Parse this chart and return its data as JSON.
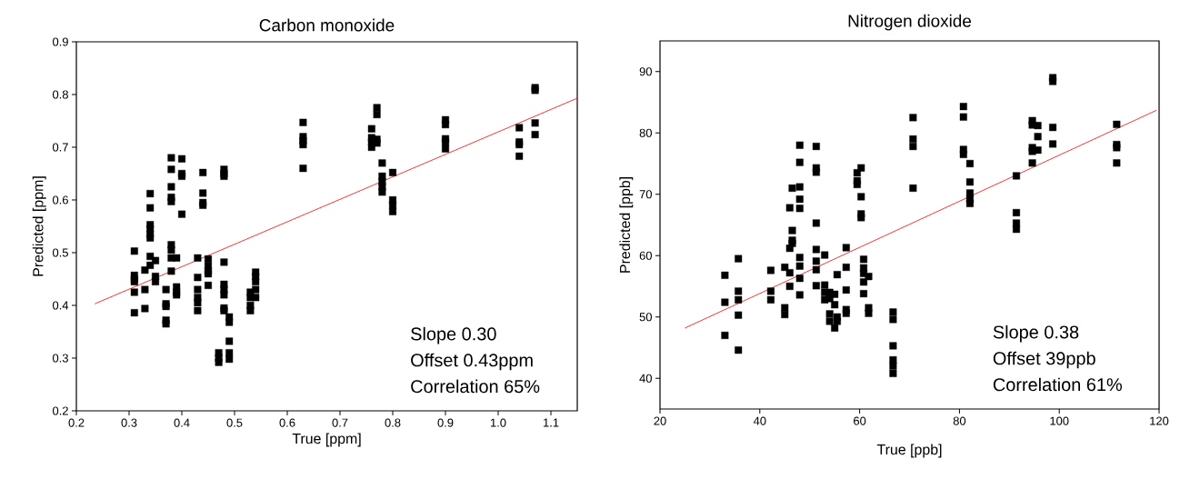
{
  "chart_data": [
    {
      "type": "scatter",
      "title": "Carbon monoxide",
      "xlabel": "True [ppm]",
      "ylabel": "Predicted [ppm]",
      "xlim": [
        0.2,
        1.15
      ],
      "ylim": [
        0.2,
        0.9
      ],
      "xticks": [
        0.2,
        0.3,
        0.4,
        0.5,
        0.6,
        0.7,
        0.8,
        0.9,
        {
          "value": 1,
          "label": "1.0"
        },
        1.1
      ],
      "yticks": [
        0.2,
        0.3,
        0.4,
        0.5,
        0.6,
        0.7,
        0.8,
        0.9
      ],
      "annotations": [
        "Slope 0.30",
        "Offset 0.43ppm",
        "Correlation 65%"
      ],
      "series": [
        {
          "color": "#000000",
          "marker": "square",
          "x": [
            0.31,
            0.31,
            0.31,
            0.31,
            0.31,
            0.31,
            0.33,
            0.33,
            0.33,
            0.34,
            0.34,
            0.34,
            0.34,
            0.34,
            0.34,
            0.34,
            0.34,
            0.35,
            0.35,
            0.35,
            0.37,
            0.37,
            0.37,
            0.37,
            0.37,
            0.38,
            0.38,
            0.38,
            0.38,
            0.38,
            0.38,
            0.38,
            0.38,
            0.38,
            0.39,
            0.39,
            0.39,
            0.39,
            0.4,
            0.4,
            0.4,
            0.4,
            0.43,
            0.43,
            0.43,
            0.43,
            0.43,
            0.43,
            0.44,
            0.44,
            0.44,
            0.44,
            0.45,
            0.45,
            0.45,
            0.45,
            0.45,
            0.47,
            0.47,
            0.47,
            0.48,
            0.48,
            0.48,
            0.48,
            0.48,
            0.48,
            0.48,
            0.48,
            0.48,
            0.49,
            0.49,
            0.49,
            0.49,
            0.49,
            0.53,
            0.53,
            0.53,
            0.53,
            0.54,
            0.54,
            0.54,
            0.54,
            0.54,
            0.63,
            0.63,
            0.63,
            0.63,
            0.63,
            0.76,
            0.76,
            0.76,
            0.76,
            0.77,
            0.77,
            0.77,
            0.77,
            0.78,
            0.78,
            0.78,
            0.78,
            0.78,
            0.8,
            0.8,
            0.8,
            0.8,
            0.9,
            0.9,
            0.9,
            0.9,
            0.9,
            1.04,
            1.04,
            1.04,
            1.04,
            1.07,
            1.07,
            1.07,
            1.07
          ],
          "values": [
            0.503,
            0.457,
            0.45,
            0.445,
            0.425,
            0.386,
            0.467,
            0.43,
            0.394,
            0.612,
            0.585,
            0.553,
            0.545,
            0.535,
            0.528,
            0.493,
            0.476,
            0.485,
            0.455,
            0.445,
            0.43,
            0.403,
            0.398,
            0.372,
            0.365,
            0.68,
            0.658,
            0.625,
            0.605,
            0.597,
            0.515,
            0.505,
            0.49,
            0.465,
            0.49,
            0.435,
            0.425,
            0.42,
            0.678,
            0.65,
            0.645,
            0.573,
            0.49,
            0.453,
            0.43,
            0.415,
            0.405,
            0.39,
            0.652,
            0.613,
            0.595,
            0.59,
            0.488,
            0.475,
            0.465,
            0.46,
            0.438,
            0.31,
            0.3,
            0.292,
            0.658,
            0.65,
            0.645,
            0.482,
            0.44,
            0.43,
            0.42,
            0.395,
            0.39,
            0.378,
            0.368,
            0.332,
            0.31,
            0.298,
            0.425,
            0.415,
            0.4,
            0.39,
            0.463,
            0.455,
            0.445,
            0.43,
            0.415,
            0.747,
            0.72,
            0.712,
            0.705,
            0.66,
            0.735,
            0.718,
            0.71,
            0.7,
            0.775,
            0.762,
            0.715,
            0.708,
            0.67,
            0.645,
            0.635,
            0.625,
            0.615,
            0.652,
            0.6,
            0.59,
            0.578,
            0.752,
            0.743,
            0.716,
            0.71,
            0.697,
            0.737,
            0.71,
            0.705,
            0.683,
            0.813,
            0.808,
            0.746,
            0.724
          ]
        },
        {
          "type": "line",
          "marker": "none",
          "color": "#ff0000",
          "x": [
            0.235,
            1.15
          ],
          "values": [
            0.403,
            0.793
          ]
        }
      ]
    },
    {
      "type": "scatter",
      "title": "Nitrogen dioxide",
      "xlabel": "True [ppb]",
      "ylabel": "Predicted [ppb]",
      "xlim": [
        20,
        120
      ],
      "ylim": [
        35,
        95
      ],
      "xticks": [
        20,
        40,
        60,
        80,
        100,
        120
      ],
      "yticks": [
        40,
        50,
        60,
        70,
        80,
        90
      ],
      "annotations": [
        "Slope 0.38",
        "Offset 39ppb",
        "Correlation 61%"
      ],
      "series": [
        {
          "color": "#000000",
          "marker": "square",
          "x": [
            33,
            33,
            33,
            35.7,
            35.7,
            35.7,
            35.7,
            35.7,
            42.2,
            42.2,
            42.2,
            45,
            45,
            45,
            46,
            46,
            46,
            46,
            46.5,
            46.5,
            46.5,
            46.5,
            48,
            48,
            48,
            48,
            48,
            48,
            48,
            48,
            48,
            51.3,
            51.3,
            51.3,
            51.3,
            51.3,
            51.3,
            51.3,
            51.3,
            53,
            53,
            53,
            53,
            54,
            54,
            54,
            54,
            55,
            55,
            55,
            55.5,
            55.5,
            55.5,
            57.3,
            57.3,
            57.3,
            57.3,
            57.3,
            59.5,
            59.5,
            59.5,
            60.3,
            60.3,
            60.3,
            60.3,
            60.8,
            60.8,
            60.8,
            60.8,
            60.8,
            61.8,
            61.8,
            61.8,
            66.7,
            66.7,
            66.7,
            66.7,
            66.7,
            66.7,
            70.7,
            70.7,
            70.7,
            70.7,
            80.8,
            80.8,
            80.8,
            80.8,
            82.1,
            82.1,
            82.1,
            82.1,
            82.1,
            91.4,
            91.4,
            91.4,
            91.4,
            94.6,
            94.6,
            94.6,
            94.6,
            94.6,
            95.7,
            95.7,
            95.7,
            98.7,
            98.7,
            98.7,
            98.7,
            111.5,
            111.5,
            111.5,
            111.5
          ],
          "values": [
            56.8,
            52.4,
            47,
            59.5,
            54.2,
            52.8,
            50.3,
            44.6,
            57.6,
            54.2,
            52.8,
            58.1,
            51.5,
            50.4,
            67.8,
            61.2,
            57.2,
            55,
            71,
            64.1,
            62.5,
            62,
            78,
            75.2,
            71.2,
            69.2,
            67.7,
            59.7,
            58.3,
            56.3,
            53.6,
            77.8,
            74.3,
            73.6,
            65.3,
            61,
            59.1,
            57.7,
            55.1,
            60.1,
            55.2,
            54,
            52.8,
            54,
            53,
            50.5,
            49.3,
            53.7,
            52,
            48.2,
            56.9,
            50,
            49.3,
            61.3,
            58.1,
            54.4,
            51.2,
            50.6,
            73.5,
            72.2,
            71.6,
            74.3,
            69.6,
            66.8,
            66.2,
            59.4,
            58,
            57.1,
            55.7,
            53.8,
            56.6,
            51.5,
            50.6,
            50.8,
            49.6,
            45.3,
            43,
            42,
            40.8,
            82.5,
            79,
            77.8,
            71,
            84.3,
            82.6,
            77.3,
            76.5,
            75,
            72,
            70.2,
            69.2,
            68.5,
            73,
            67,
            65.3,
            64.3,
            82,
            81.3,
            77.6,
            77,
            75.1,
            81.2,
            79.4,
            77.2,
            89,
            88.4,
            80.9,
            78.2,
            81.4,
            78.1,
            77.6,
            75.1
          ]
        },
        {
          "type": "line",
          "marker": "none",
          "color": "#ff0000",
          "x": [
            25,
            119.5
          ],
          "values": [
            48.2,
            83.7
          ]
        }
      ]
    }
  ]
}
